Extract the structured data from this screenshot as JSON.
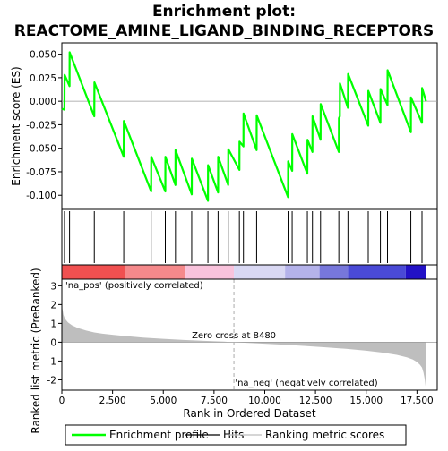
{
  "title_line1": "Enrichment plot:",
  "title_line2": "REACTOME_AMINE_LIGAND_BINDING_RECEPTORS",
  "colors": {
    "profile": "#00ff00",
    "hits": "#000000",
    "metric_fill": "#bebebe",
    "zero_line": "#aaaaaa",
    "pos_label": "#dd0000",
    "neg_label": "#0000cc"
  },
  "chart_data": [
    {
      "type": "line",
      "name": "es-panel",
      "ylabel": "Enrichment score (ES)",
      "xlim": [
        0,
        18500
      ],
      "ylim": [
        -0.115,
        0.062
      ],
      "y_ticks": [
        0.05,
        0.025,
        0.0,
        -0.025,
        -0.05,
        -0.075,
        -0.1
      ],
      "y_tick_labels": [
        "0.050",
        "0.025",
        "0.000",
        "-0.025",
        "-0.050",
        "-0.075",
        "-0.100"
      ],
      "grid": false,
      "series": [
        {
          "name": "Enrichment profile",
          "x": [
            0,
            130,
            135,
            380,
            385,
            1600,
            1605,
            3050,
            3055,
            4400,
            4405,
            5100,
            5105,
            5600,
            5605,
            6400,
            6405,
            7200,
            7205,
            7700,
            7705,
            8200,
            8205,
            8750,
            8755,
            8950,
            8955,
            9600,
            9605,
            11150,
            11155,
            11350,
            11355,
            12100,
            12105,
            12350,
            12355,
            12750,
            12755,
            13650,
            13655,
            13700,
            13705,
            14100,
            14105,
            15100,
            15105,
            15700,
            15705,
            16050,
            16055,
            17200,
            17205,
            17750,
            17755,
            17950
          ],
          "values": [
            -0.008,
            -0.009,
            0.028,
            0.016,
            0.052,
            -0.016,
            0.02,
            -0.059,
            -0.021,
            -0.096,
            -0.059,
            -0.096,
            -0.059,
            -0.089,
            -0.052,
            -0.099,
            -0.061,
            -0.106,
            -0.068,
            -0.097,
            -0.059,
            -0.089,
            -0.051,
            -0.073,
            -0.043,
            -0.048,
            -0.013,
            -0.052,
            -0.015,
            -0.102,
            -0.064,
            -0.074,
            -0.035,
            -0.077,
            -0.041,
            -0.054,
            -0.016,
            -0.041,
            -0.003,
            -0.054,
            -0.018,
            -0.016,
            0.019,
            -0.007,
            0.029,
            -0.026,
            0.011,
            -0.023,
            0.013,
            -0.004,
            0.033,
            -0.033,
            0.004,
            -0.023,
            0.014,
            0.0
          ]
        }
      ]
    },
    {
      "type": "scatter",
      "name": "hits-panel",
      "legend": "Hits",
      "xlim": [
        0,
        18500
      ],
      "hit_positions": [
        130,
        380,
        1600,
        3050,
        4400,
        5100,
        5600,
        6400,
        7200,
        7700,
        8200,
        8750,
        8950,
        9600,
        11150,
        11350,
        12100,
        12350,
        12750,
        13650,
        14100,
        15100,
        15700,
        16050,
        17200,
        17750
      ]
    },
    {
      "type": "heatmap",
      "name": "rank-color-bar",
      "xlim": [
        0,
        18500
      ],
      "n_genes": 17950,
      "segments": [
        {
          "end": 3100,
          "color": "#f05050"
        },
        {
          "end": 6100,
          "color": "#f5898b"
        },
        {
          "end": 8480,
          "color": "#f9c3dc"
        },
        {
          "end": 11000,
          "color": "#d9d8f3"
        },
        {
          "end": 12700,
          "color": "#b4b2ea"
        },
        {
          "end": 14100,
          "color": "#7777db"
        },
        {
          "end": 16950,
          "color": "#4a4ad6"
        },
        {
          "end": 17950,
          "color": "#2211c6"
        }
      ]
    },
    {
      "type": "area",
      "name": "metric-panel",
      "xlabel": "Rank in Ordered Dataset",
      "ylabel": "Ranked list metric (PreRanked)",
      "legend": "Ranking metric scores",
      "xlim": [
        0,
        18500
      ],
      "ylim": [
        -2.55,
        3.35
      ],
      "y_ticks": [
        3,
        2,
        1,
        0,
        -1,
        -2
      ],
      "y_tick_labels": [
        "3",
        "2",
        "1",
        "0",
        "-1",
        "-2"
      ],
      "x_ticks": [
        0,
        2500,
        5000,
        7500,
        10000,
        12500,
        15000,
        17500
      ],
      "x_tick_labels": [
        "0",
        "2,500",
        "5,000",
        "7,500",
        "10,000",
        "12,500",
        "15,000",
        "17,500"
      ],
      "x": [
        0,
        25,
        80,
        150,
        300,
        500,
        800,
        1200,
        1600,
        2000,
        3000,
        4000,
        5000,
        6000,
        7000,
        8000,
        8480,
        9000,
        10000,
        11000,
        12000,
        13000,
        14000,
        15000,
        15800,
        16500,
        17000,
        17300,
        17500,
        17650,
        17750,
        17820,
        17880,
        17920,
        17950
      ],
      "values": [
        3.2,
        1.8,
        1.45,
        1.25,
        1.05,
        0.9,
        0.75,
        0.62,
        0.52,
        0.45,
        0.34,
        0.25,
        0.18,
        0.12,
        0.07,
        0.03,
        0.0,
        -0.03,
        -0.08,
        -0.14,
        -0.2,
        -0.27,
        -0.35,
        -0.45,
        -0.55,
        -0.67,
        -0.8,
        -0.92,
        -1.05,
        -1.2,
        -1.35,
        -1.6,
        -1.95,
        -2.3,
        -2.5
      ],
      "zero_cross_label": "Zero cross at 8480",
      "zero_cross_at": 8480,
      "pos_label": "'na_pos' (positively correlated)",
      "neg_label": "'na_neg' (negatively correlated)"
    }
  ],
  "legend": {
    "items": [
      {
        "label": "Enrichment profile",
        "color": "#00ff00"
      },
      {
        "label": "Hits",
        "color": "#000000"
      },
      {
        "label": "Ranking metric scores",
        "color": "#bebebe"
      }
    ]
  }
}
